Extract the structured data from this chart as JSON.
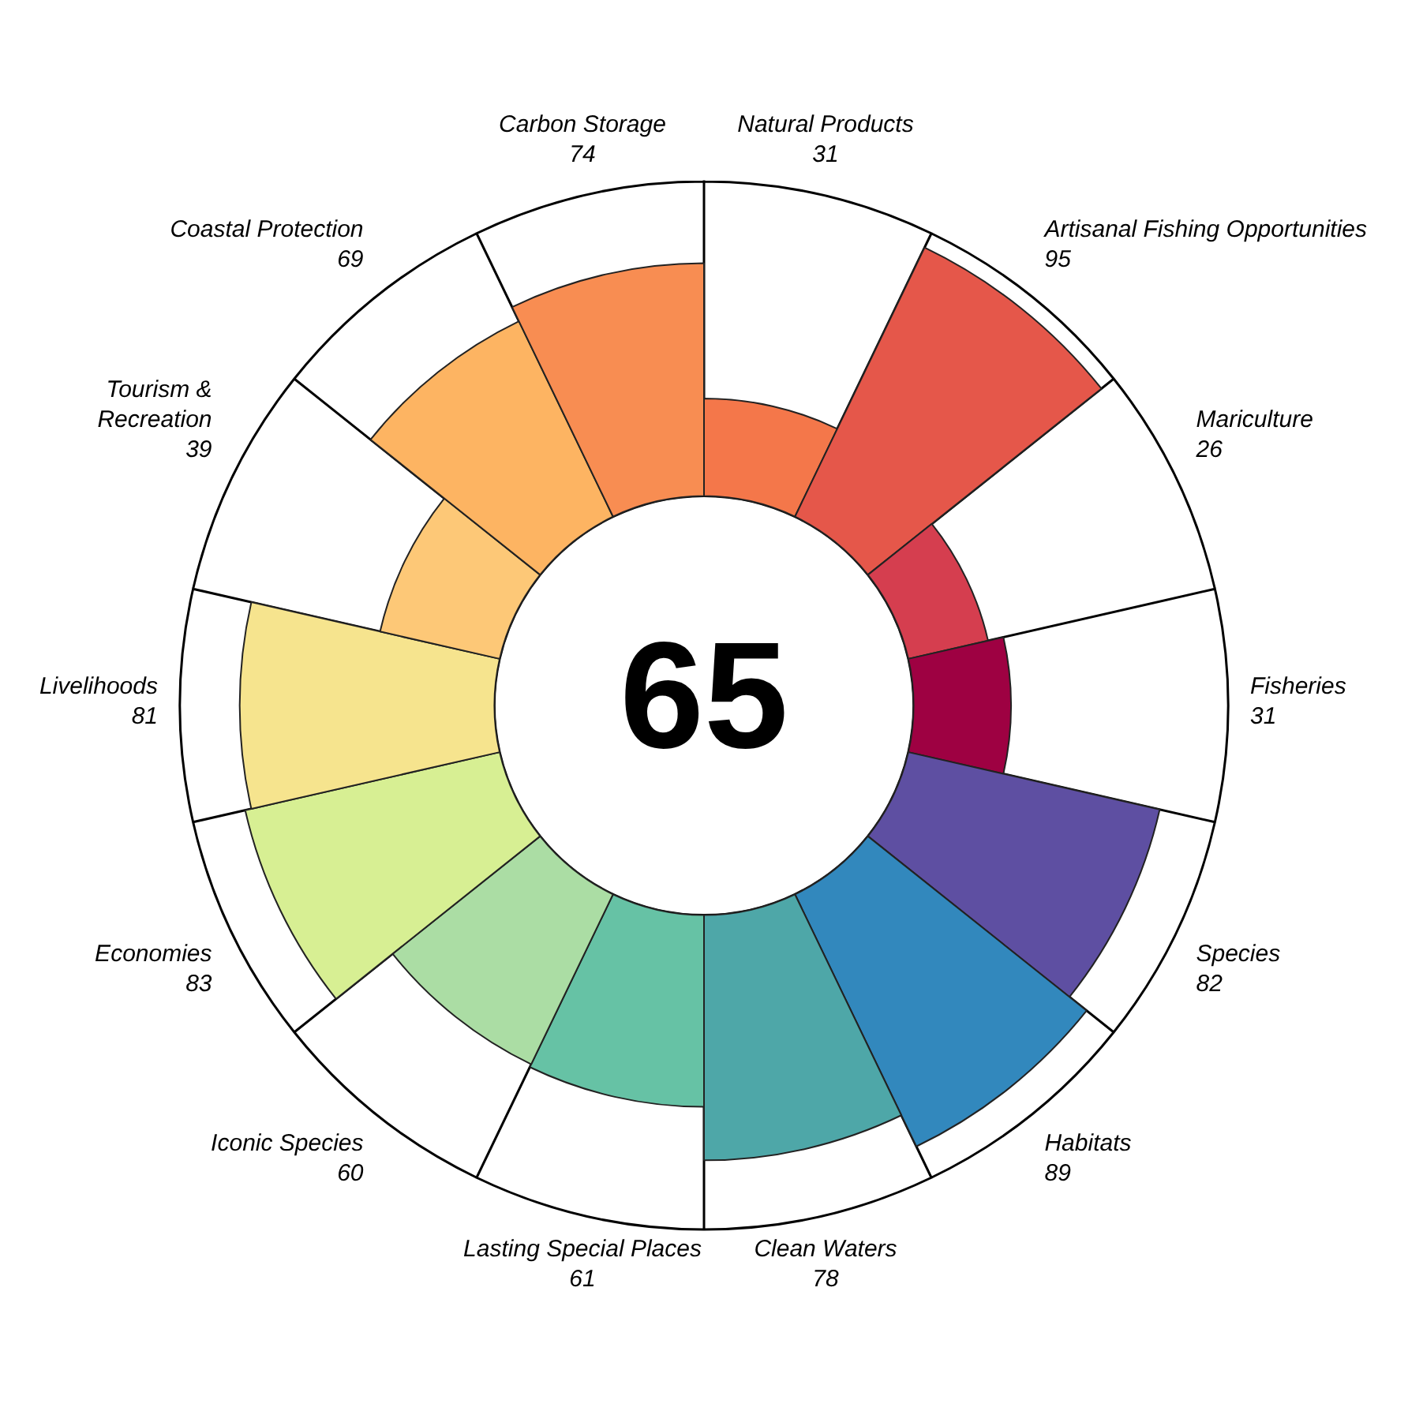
{
  "chart_data": {
    "type": "other",
    "annotations": [
      "65"
    ],
    "categories": [
      "Natural Products",
      "Artisanal Fishing Opportunities",
      "Mariculture",
      "Fisheries",
      "Species",
      "Habitats",
      "Clean Waters",
      "Lasting Special Places",
      "Iconic Species",
      "Economies",
      "Livelihoods",
      "Tourism & Recreation",
      "Coastal Protection",
      "Carbon Storage"
    ],
    "values": [
      31,
      95,
      26,
      31,
      82,
      89,
      78,
      61,
      60,
      83,
      81,
      39,
      69,
      74
    ],
    "colors": [
      "#f4774a",
      "#e5574a",
      "#d53e4f",
      "#9e0142",
      "#5e4fa2",
      "#3288bd",
      "#4ea7a8",
      "#66c2a5",
      "#abdda4",
      "#d7ef93",
      "#f6e48e",
      "#fdc877",
      "#fdb462",
      "#f88d52"
    ],
    "data_labels": true,
    "legend": false
  }
}
